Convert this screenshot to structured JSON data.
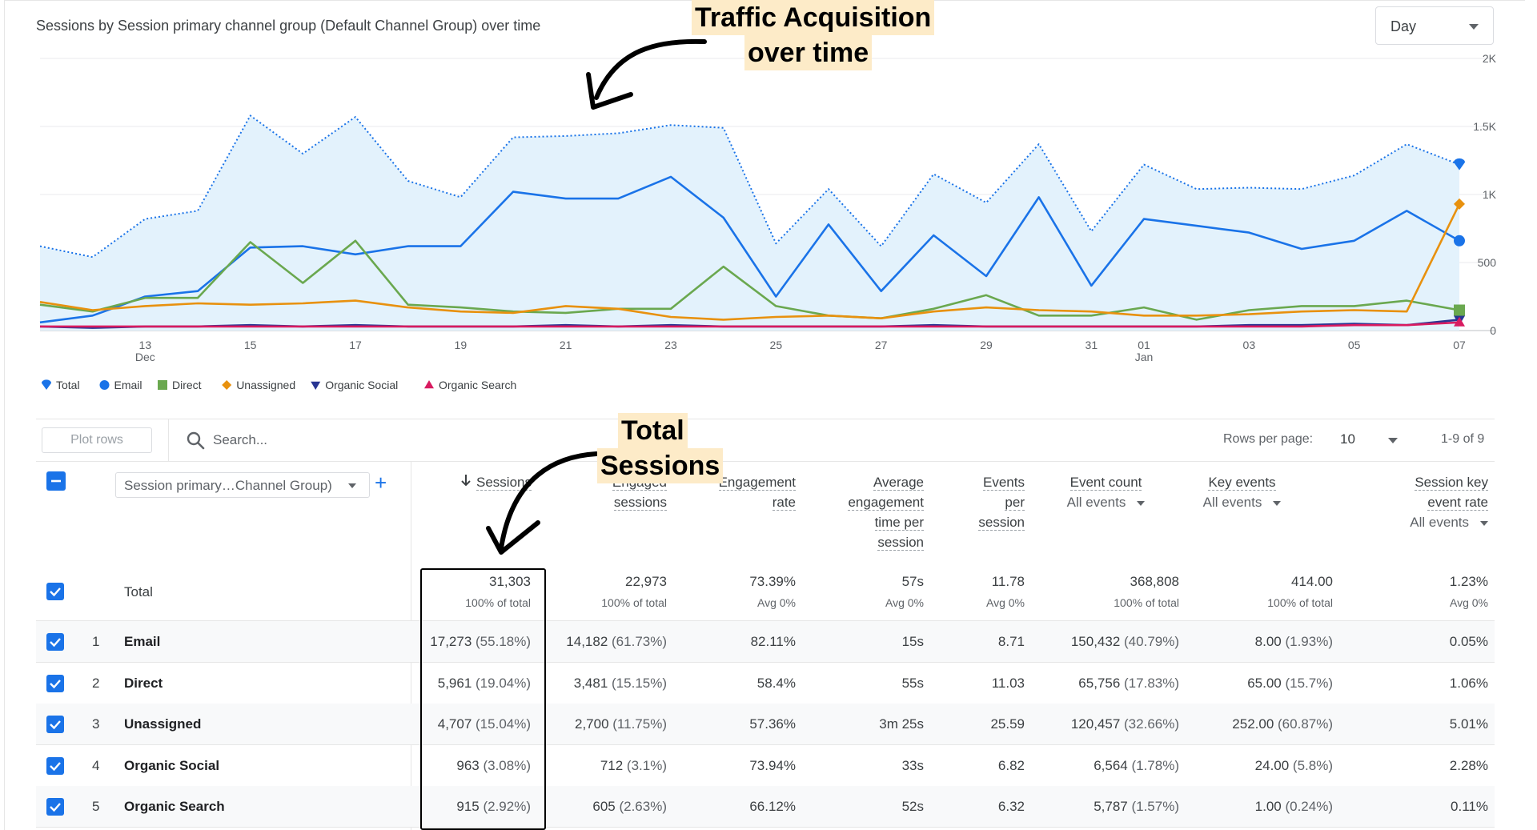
{
  "chart": {
    "title": "Sessions by Session primary channel group (Default Channel Group) over time",
    "granularity": "Day"
  },
  "chart_data": {
    "type": "line",
    "title": "Sessions by Session primary channel group (Default Channel Group) over time",
    "x_ticks": [
      {
        "label": "13",
        "sub": "Dec",
        "day": 2
      },
      {
        "label": "15",
        "sub": "",
        "day": 4
      },
      {
        "label": "17",
        "sub": "",
        "day": 6
      },
      {
        "label": "19",
        "sub": "",
        "day": 8
      },
      {
        "label": "21",
        "sub": "",
        "day": 10
      },
      {
        "label": "23",
        "sub": "",
        "day": 12
      },
      {
        "label": "25",
        "sub": "",
        "day": 14
      },
      {
        "label": "27",
        "sub": "",
        "day": 16
      },
      {
        "label": "29",
        "sub": "",
        "day": 18
      },
      {
        "label": "31",
        "sub": "",
        "day": 20
      },
      {
        "label": "01",
        "sub": "Jan",
        "day": 21
      },
      {
        "label": "03",
        "sub": "",
        "day": 23
      },
      {
        "label": "05",
        "sub": "",
        "day": 25
      },
      {
        "label": "07",
        "sub": "",
        "day": 27
      }
    ],
    "y_ticks": [
      {
        "label": "0",
        "value": 0
      },
      {
        "label": "500",
        "value": 500
      },
      {
        "label": "1K",
        "value": 1000
      },
      {
        "label": "1.5K",
        "value": 1500
      },
      {
        "label": "2K",
        "value": 2000
      }
    ],
    "ylim": [
      0,
      2000
    ],
    "series": [
      {
        "name": "Total",
        "color": "#1a73e8",
        "marker": "pin",
        "style": "dotted",
        "fill": "#e3f2fc",
        "values": [
          620,
          540,
          820,
          880,
          1580,
          1300,
          1570,
          1100,
          980,
          1420,
          1430,
          1450,
          1510,
          1490,
          640,
          1040,
          620,
          1150,
          940,
          1370,
          730,
          1220,
          1040,
          1050,
          1040,
          1140,
          1370,
          1220
        ]
      },
      {
        "name": "Email",
        "color": "#1a73e8",
        "marker": "circle",
        "style": "solid",
        "values": [
          60,
          110,
          250,
          290,
          610,
          620,
          560,
          620,
          620,
          1020,
          970,
          970,
          1130,
          830,
          250,
          780,
          290,
          700,
          400,
          980,
          330,
          820,
          770,
          720,
          600,
          660,
          880,
          660
        ]
      },
      {
        "name": "Direct",
        "color": "#6aa84f",
        "marker": "square",
        "style": "solid",
        "values": [
          190,
          140,
          240,
          240,
          650,
          350,
          660,
          190,
          170,
          140,
          130,
          160,
          160,
          470,
          180,
          110,
          90,
          160,
          260,
          110,
          110,
          170,
          80,
          150,
          180,
          180,
          220,
          150
        ]
      },
      {
        "name": "Unassigned",
        "color": "#e8910e",
        "marker": "diamond",
        "style": "solid",
        "values": [
          210,
          150,
          180,
          200,
          190,
          200,
          220,
          170,
          140,
          130,
          180,
          160,
          100,
          80,
          100,
          110,
          90,
          140,
          170,
          150,
          140,
          110,
          110,
          120,
          140,
          150,
          140,
          930
        ]
      },
      {
        "name": "Organic Social",
        "color": "#283593",
        "marker": "triangle-down",
        "style": "solid",
        "values": [
          30,
          20,
          30,
          30,
          40,
          30,
          40,
          30,
          30,
          30,
          40,
          30,
          40,
          30,
          30,
          30,
          30,
          40,
          30,
          30,
          30,
          30,
          30,
          40,
          40,
          50,
          40,
          80
        ]
      },
      {
        "name": "Organic Search",
        "color": "#d81b60",
        "marker": "triangle-up",
        "style": "solid",
        "values": [
          30,
          30,
          30,
          30,
          30,
          30,
          30,
          30,
          30,
          30,
          30,
          30,
          30,
          30,
          30,
          30,
          30,
          30,
          30,
          30,
          30,
          30,
          30,
          30,
          30,
          40,
          40,
          60
        ]
      }
    ],
    "legend_position": "bottom-left"
  },
  "annotations": {
    "traffic_line1": "Traffic Acquisition",
    "traffic_line2": "over time",
    "sessions_line1": "Total",
    "sessions_line2": "Sessions"
  },
  "toolbar": {
    "plot_rows_label": "Plot rows",
    "search_placeholder": "Search...",
    "rows_per_page_label": "Rows per page:",
    "rows_per_page_value": "10",
    "pagination": "1-9 of 9"
  },
  "table": {
    "dimension_label": "Session primary…Channel Group)",
    "headers": {
      "sessions": "Sessions",
      "engaged_l1": "Engaged",
      "engaged_l2": "sessions",
      "engrate_l1": "Engagement",
      "engrate_l2": "rate",
      "avg_l1": "Average",
      "avg_l2": "engagement",
      "avg_l3": "time per",
      "avg_l4": "session",
      "epc_l1": "Events",
      "epc_l2": "per",
      "epc_l3": "session",
      "evcount_l1": "Event count",
      "evcount_sub": "All events",
      "keyev_l1": "Key events",
      "keyev_sub": "All events",
      "skr_l1": "Session key",
      "skr_l2": "event rate",
      "skr_sub": "All events"
    },
    "total": {
      "label": "Total",
      "sessions": "31,303",
      "sessions_sub": "100% of total",
      "engaged": "22,973",
      "engaged_sub": "100% of total",
      "engrate": "73.39%",
      "engrate_sub": "Avg 0%",
      "avgtime": "57s",
      "avgtime_sub": "Avg 0%",
      "eps": "11.78",
      "eps_sub": "Avg 0%",
      "evcount": "368,808",
      "evcount_sub": "100% of total",
      "keyev": "414.00",
      "keyev_sub": "100% of total",
      "skr": "1.23%",
      "skr_sub": "Avg 0%"
    },
    "rows": [
      {
        "num": "1",
        "name": "Email",
        "sessions": "17,273",
        "sessions_pct": "(55.18%)",
        "engaged": "14,182",
        "engaged_pct": "(61.73%)",
        "engrate": "82.11%",
        "avgtime": "15s",
        "eps": "8.71",
        "evcount": "150,432",
        "evcount_pct": "(40.79%)",
        "keyev": "8.00",
        "keyev_pct": "(1.93%)",
        "skr": "0.05%"
      },
      {
        "num": "2",
        "name": "Direct",
        "sessions": "5,961",
        "sessions_pct": "(19.04%)",
        "engaged": "3,481",
        "engaged_pct": "(15.15%)",
        "engrate": "58.4%",
        "avgtime": "55s",
        "eps": "11.03",
        "evcount": "65,756",
        "evcount_pct": "(17.83%)",
        "keyev": "65.00",
        "keyev_pct": "(15.7%)",
        "skr": "1.06%"
      },
      {
        "num": "3",
        "name": "Unassigned",
        "sessions": "4,707",
        "sessions_pct": "(15.04%)",
        "engaged": "2,700",
        "engaged_pct": "(11.75%)",
        "engrate": "57.36%",
        "avgtime": "3m 25s",
        "eps": "25.59",
        "evcount": "120,457",
        "evcount_pct": "(32.66%)",
        "keyev": "252.00",
        "keyev_pct": "(60.87%)",
        "skr": "5.01%"
      },
      {
        "num": "4",
        "name": "Organic Social",
        "sessions": "963",
        "sessions_pct": "(3.08%)",
        "engaged": "712",
        "engaged_pct": "(3.1%)",
        "engrate": "73.94%",
        "avgtime": "33s",
        "eps": "6.82",
        "evcount": "6,564",
        "evcount_pct": "(1.78%)",
        "keyev": "24.00",
        "keyev_pct": "(5.8%)",
        "skr": "2.28%"
      },
      {
        "num": "5",
        "name": "Organic Search",
        "sessions": "915",
        "sessions_pct": "(2.92%)",
        "engaged": "605",
        "engaged_pct": "(2.63%)",
        "engrate": "66.12%",
        "avgtime": "52s",
        "eps": "6.32",
        "evcount": "5,787",
        "evcount_pct": "(1.57%)",
        "keyev": "1.00",
        "keyev_pct": "(0.24%)",
        "skr": "0.11%"
      }
    ]
  }
}
